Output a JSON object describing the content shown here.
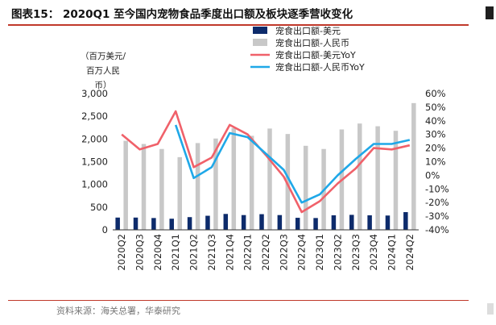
{
  "header": {
    "title": "图表15： 2020Q1 至今国内宠物食品季度出口额及板块逐季营收变化"
  },
  "footer": {
    "source": "资料来源：海关总署，华泰研究"
  },
  "chart_data": {
    "type": "bar",
    "categories": [
      "2020Q2",
      "2020Q3",
      "2020Q4",
      "2021Q1",
      "2021Q2",
      "2021Q3",
      "2021Q4",
      "2022Q1",
      "2022Q2",
      "2022Q3",
      "2022Q4",
      "2023Q1",
      "2023Q2",
      "2023Q3",
      "2023Q4",
      "2024Q1",
      "2024Q2"
    ],
    "y_left": {
      "unit_lines": [
        "（百万美元/",
        "百万人民",
        "币）"
      ],
      "lim": [
        0,
        3000
      ],
      "ticks": [
        "0",
        "500",
        "1,000",
        "1,500",
        "2,000",
        "2,500",
        "3,000"
      ]
    },
    "y_right": {
      "lim": [
        -40,
        60
      ],
      "ticks": [
        "-40%",
        "-30%",
        "-20%",
        "-10%",
        "0%",
        "10%",
        "20%",
        "30%",
        "40%",
        "50%",
        "60%"
      ]
    },
    "series": [
      {
        "name": "宠食出口额-美元",
        "type": "bar",
        "axis": "left",
        "color": "#0d2b6b",
        "values": [
          270,
          270,
          260,
          245,
          280,
          310,
          350,
          325,
          345,
          325,
          265,
          260,
          320,
          330,
          320,
          315,
          390
        ]
      },
      {
        "name": "宠食出口额-人民币",
        "type": "bar",
        "axis": "left",
        "color": "#c8c8c8",
        "values": [
          1960,
          1890,
          1780,
          1600,
          1910,
          2010,
          2240,
          2070,
          2230,
          2110,
          1850,
          1780,
          2210,
          2340,
          2280,
          2180,
          2790
        ]
      },
      {
        "name": "宠食出口额-美元YoY",
        "type": "line",
        "axis": "right",
        "color": "#f0616a",
        "values": [
          30,
          19,
          23,
          47,
          6,
          13,
          37,
          30,
          15,
          -1,
          -27,
          -19,
          -6,
          5,
          20,
          19,
          22
        ]
      },
      {
        "name": "宠食出口额-人民币YoY",
        "type": "line",
        "axis": "right",
        "color": "#1fa8e8",
        "values": [
          null,
          null,
          null,
          37,
          -2,
          6,
          31,
          28,
          16,
          4,
          -20,
          -14,
          0,
          12,
          23,
          23,
          26
        ]
      }
    ],
    "legend_position": "top-center",
    "grid": false
  }
}
